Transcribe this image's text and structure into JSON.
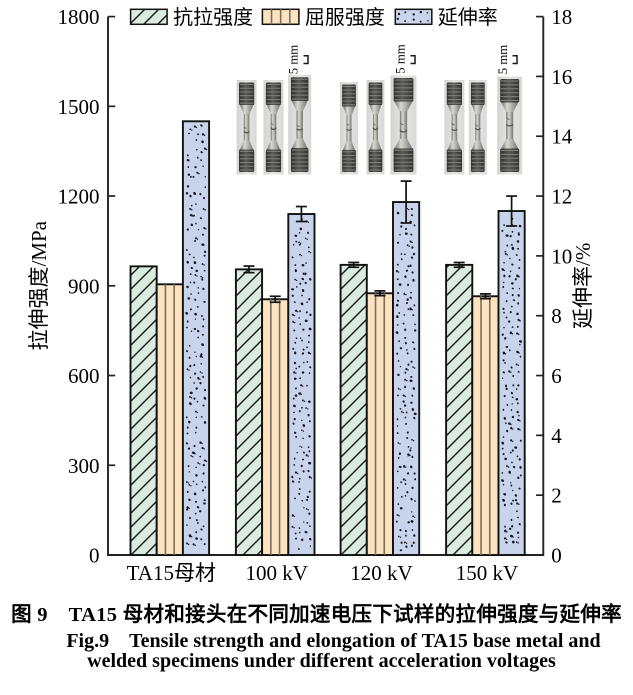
{
  "figure": {
    "caption_cn": "图 9　TA15 母材和接头在不同加速电压下试样的拉伸强度与延伸率",
    "caption_en_line1": "Fig.9　Tensile strength and elongation of TA15 base metal and",
    "caption_en_line2": "welded specimens under different acceleration voltages"
  },
  "chart_data": {
    "type": "bar",
    "categories": [
      "TA15母材",
      "100 kV",
      "120 kV",
      "150 kV"
    ],
    "series": [
      {
        "name": "抗拉强度",
        "axis": "left",
        "style": "hatch-green",
        "values": [
          965,
          955,
          970,
          970
        ],
        "errors": [
          0,
          11,
          8,
          8
        ]
      },
      {
        "name": "屈服强度",
        "axis": "left",
        "style": "vlines-orange",
        "values": [
          905,
          855,
          875,
          865
        ],
        "errors": [
          0,
          10,
          8,
          8
        ]
      },
      {
        "name": "延伸率",
        "axis": "right",
        "style": "dots-blue",
        "values": [
          14.5,
          11.4,
          11.8,
          11.5
        ],
        "errors": [
          0,
          0.25,
          0.7,
          0.5
        ]
      }
    ],
    "left_axis": {
      "label": "拉伸强度/MPa",
      "min": 0,
      "max": 1800,
      "step": 300
    },
    "right_axis": {
      "label": "延伸率/%",
      "min": 0,
      "max": 18,
      "step": 2
    },
    "legend_position": "top",
    "grid": false,
    "insets": [
      {
        "above_category": "100 kV",
        "scale_label": "5 mm",
        "photo_count": 3
      },
      {
        "above_category": "120 kV",
        "scale_label": "5 mm",
        "photo_count": 3
      },
      {
        "above_category": "150 kV",
        "scale_label": "5 mm",
        "photo_count": 3
      }
    ]
  },
  "colors": {
    "tensile_fill": "#d9ecdf",
    "yield_fill": "#fce3c0",
    "elongation_fill": "#c8d3ec",
    "hatch_line": "#1d1d1d",
    "vline": "#77705f",
    "dot": "#17171f",
    "bar_border": "#111111",
    "axis": "#222222",
    "text": "#000000",
    "photo_bg": "#d7d7d5"
  }
}
